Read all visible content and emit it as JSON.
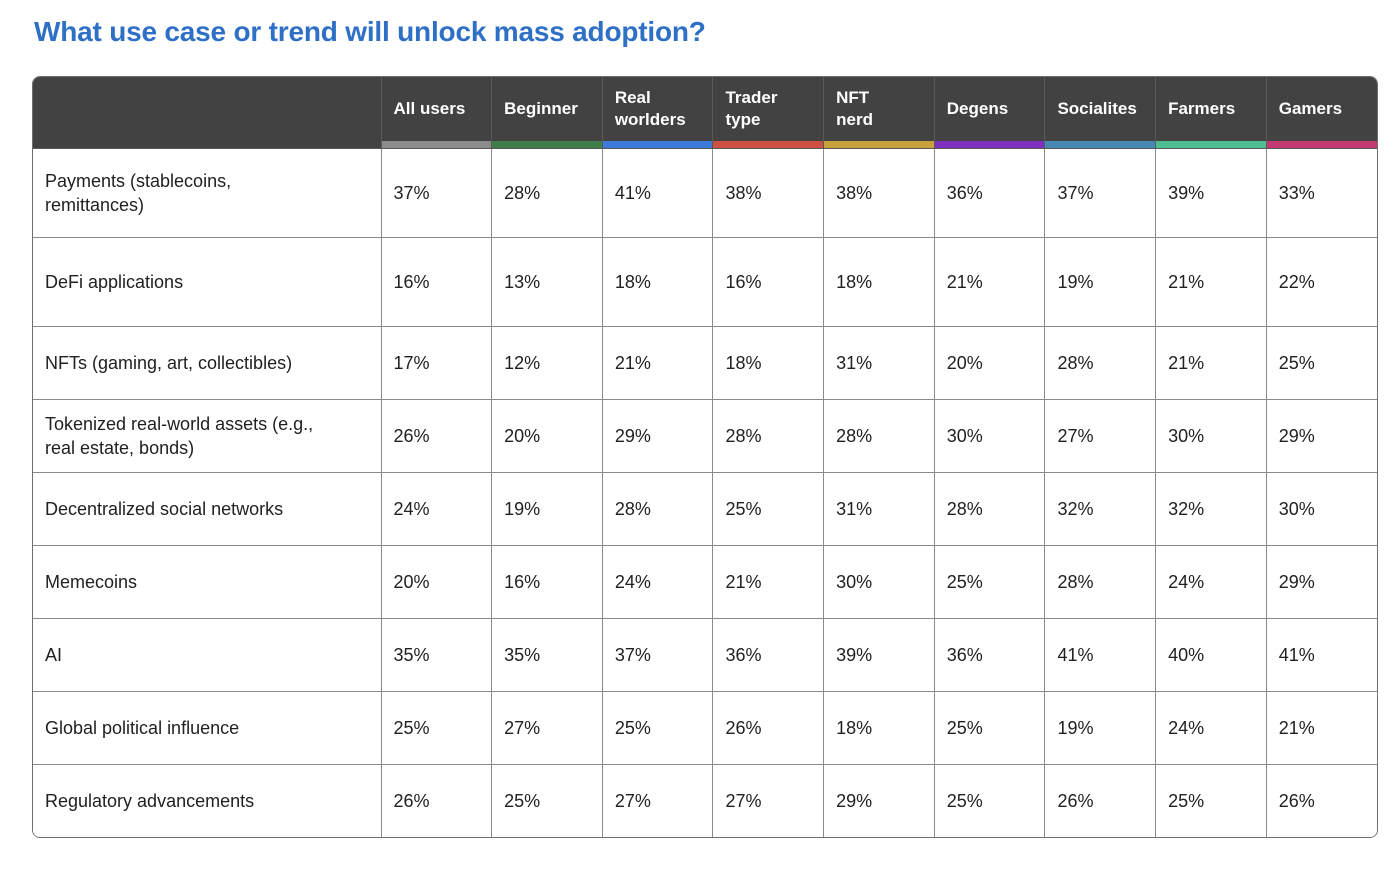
{
  "page": {
    "title": "What use case or trend will unlock mass adoption?",
    "title_color": "#2e70c5"
  },
  "table": {
    "corner_label": "",
    "header_bg": "#424242",
    "columns": [
      {
        "label": "All users",
        "color": "#8c8c8c"
      },
      {
        "label": "Beginner",
        "color": "#3f7d4a"
      },
      {
        "label": "Real\nworlders",
        "color": "#3d79d9"
      },
      {
        "label": "Trader\ntype",
        "color": "#cc5143"
      },
      {
        "label": "NFT\nnerd",
        "color": "#c7a23c"
      },
      {
        "label": "Degens",
        "color": "#7e2fc0"
      },
      {
        "label": "Socialites",
        "color": "#4587b5"
      },
      {
        "label": "Farmers",
        "color": "#4cbe92"
      },
      {
        "label": "Gamers",
        "color": "#c23a72"
      }
    ],
    "rows": [
      {
        "label": "Payments (stablecoins,\nremittances)",
        "values": [
          "37%",
          "28%",
          "41%",
          "38%",
          "38%",
          "36%",
          "37%",
          "39%",
          "33%"
        ]
      },
      {
        "label": "DeFi applications",
        "values": [
          "16%",
          "13%",
          "18%",
          "16%",
          "18%",
          "21%",
          "19%",
          "21%",
          "22%"
        ]
      },
      {
        "label": "NFTs (gaming, art, collectibles)",
        "values": [
          "17%",
          "12%",
          "21%",
          "18%",
          "31%",
          "20%",
          "28%",
          "21%",
          "25%"
        ]
      },
      {
        "label": "Tokenized real-world assets (e.g.,\nreal estate, bonds)",
        "values": [
          "26%",
          "20%",
          "29%",
          "28%",
          "28%",
          "30%",
          "27%",
          "30%",
          "29%"
        ]
      },
      {
        "label": "Decentralized social networks",
        "values": [
          "24%",
          "19%",
          "28%",
          "25%",
          "31%",
          "28%",
          "32%",
          "32%",
          "30%"
        ]
      },
      {
        "label": "Memecoins",
        "values": [
          "20%",
          "16%",
          "24%",
          "21%",
          "30%",
          "25%",
          "28%",
          "24%",
          "29%"
        ]
      },
      {
        "label": "AI",
        "values": [
          "35%",
          "35%",
          "37%",
          "36%",
          "39%",
          "36%",
          "41%",
          "40%",
          "41%"
        ]
      },
      {
        "label": "Global political influence",
        "values": [
          "25%",
          "27%",
          "25%",
          "26%",
          "18%",
          "25%",
          "19%",
          "24%",
          "21%"
        ]
      },
      {
        "label": "Regulatory advancements",
        "values": [
          "26%",
          "25%",
          "27%",
          "27%",
          "29%",
          "25%",
          "26%",
          "25%",
          "26%"
        ]
      }
    ]
  },
  "chart_data": {
    "type": "table",
    "title": "What use case or trend will unlock mass adoption?",
    "unit": "%",
    "row_categories": [
      "Payments (stablecoins, remittances)",
      "DeFi applications",
      "NFTs (gaming, art, collectibles)",
      "Tokenized real-world assets (e.g., real estate, bonds)",
      "Decentralized social networks",
      "Memecoins",
      "AI",
      "Global political influence",
      "Regulatory advancements"
    ],
    "column_categories": [
      "All users",
      "Beginner",
      "Real worlders",
      "Trader type",
      "NFT nerd",
      "Degens",
      "Socialites",
      "Farmers",
      "Gamers"
    ],
    "series": [
      {
        "name": "All users",
        "color": "#8c8c8c",
        "values": [
          37,
          16,
          17,
          26,
          24,
          20,
          35,
          25,
          26
        ]
      },
      {
        "name": "Beginner",
        "color": "#3f7d4a",
        "values": [
          28,
          13,
          12,
          20,
          19,
          16,
          35,
          27,
          25
        ]
      },
      {
        "name": "Real worlders",
        "color": "#3d79d9",
        "values": [
          41,
          18,
          21,
          29,
          28,
          24,
          37,
          25,
          27
        ]
      },
      {
        "name": "Trader type",
        "color": "#cc5143",
        "values": [
          38,
          16,
          18,
          28,
          25,
          21,
          36,
          26,
          27
        ]
      },
      {
        "name": "NFT nerd",
        "color": "#c7a23c",
        "values": [
          38,
          18,
          31,
          28,
          31,
          30,
          39,
          18,
          29
        ]
      },
      {
        "name": "Degens",
        "color": "#7e2fc0",
        "values": [
          36,
          21,
          20,
          30,
          28,
          25,
          36,
          25,
          25
        ]
      },
      {
        "name": "Socialites",
        "color": "#4587b5",
        "values": [
          37,
          19,
          28,
          27,
          32,
          28,
          41,
          19,
          26
        ]
      },
      {
        "name": "Farmers",
        "color": "#4cbe92",
        "values": [
          39,
          21,
          21,
          30,
          32,
          24,
          40,
          24,
          25
        ]
      },
      {
        "name": "Gamers",
        "color": "#c23a72",
        "values": [
          33,
          22,
          25,
          29,
          30,
          29,
          41,
          21,
          26
        ]
      }
    ]
  }
}
